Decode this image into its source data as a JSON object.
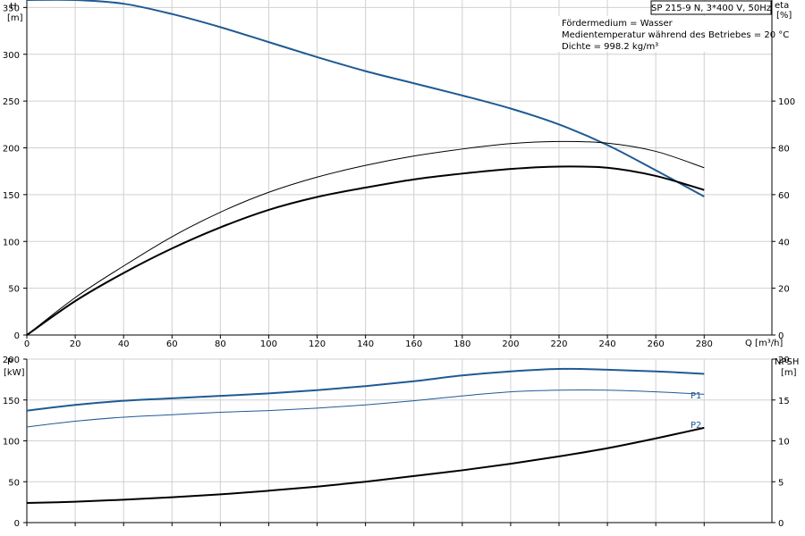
{
  "chart_data": [
    {
      "type": "line",
      "header": "SP 215-9 N, 3*400 V, 50Hz",
      "info": [
        "Fördermedium = Wasser",
        "Medientemperatur während des Betriebes = 20 °C",
        "Dichte = 998.2 kg/m³"
      ],
      "xlabel": "Q [m³/h]",
      "ylabel": [
        "H",
        "[m]"
      ],
      "y2label": [
        "eta",
        "[%]"
      ],
      "xlim": [
        0,
        308
      ],
      "ylim": [
        0,
        358
      ],
      "y2lim": [
        0,
        143.2
      ],
      "xticks": [
        0,
        20,
        40,
        60,
        80,
        100,
        120,
        140,
        160,
        180,
        200,
        220,
        240,
        260,
        280
      ],
      "yticks": [
        0,
        50,
        100,
        150,
        200,
        250,
        300,
        350
      ],
      "y2ticks": [
        0,
        20,
        40,
        60,
        80,
        100
      ],
      "grid": true,
      "series": [
        {
          "axis": "left",
          "color": "#1f5a94",
          "points": [
            [
              0,
              358
            ],
            [
              20,
              358
            ],
            [
              40,
              354
            ],
            [
              60,
              343
            ],
            [
              80,
              329
            ],
            [
              100,
              313
            ],
            [
              120,
              297
            ],
            [
              140,
              282
            ],
            [
              160,
              269
            ],
            [
              180,
              256
            ],
            [
              200,
              242
            ],
            [
              220,
              225
            ],
            [
              240,
              203
            ],
            [
              260,
              176
            ],
            [
              280,
              148
            ]
          ]
        },
        {
          "axis": "right",
          "color": "#000000",
          "points": [
            [
              0,
              0
            ],
            [
              20,
              14.5
            ],
            [
              40,
              26.5
            ],
            [
              60,
              37
            ],
            [
              80,
              46
            ],
            [
              100,
              53.5
            ],
            [
              120,
              59
            ],
            [
              140,
              63
            ],
            [
              160,
              66.5
            ],
            [
              180,
              69
            ],
            [
              200,
              71
            ],
            [
              220,
              72
            ],
            [
              240,
              71.5
            ],
            [
              260,
              68
            ],
            [
              280,
              62
            ]
          ]
        },
        {
          "axis": "right",
          "color": "#000000",
          "points": [
            [
              0,
              0
            ],
            [
              20,
              16
            ],
            [
              40,
              29.5
            ],
            [
              60,
              42
            ],
            [
              80,
              52.5
            ],
            [
              100,
              61
            ],
            [
              120,
              67.5
            ],
            [
              140,
              72.5
            ],
            [
              160,
              76.5
            ],
            [
              180,
              79.5
            ],
            [
              200,
              81.8
            ],
            [
              220,
              82.7
            ],
            [
              240,
              82
            ],
            [
              260,
              78.5
            ],
            [
              280,
              71.5
            ]
          ]
        }
      ]
    },
    {
      "type": "line",
      "xlim": [
        0,
        308
      ],
      "ylabel": [
        "P",
        "[kW]"
      ],
      "y2label": [
        "NPSH",
        "[m]"
      ],
      "ylim": [
        0,
        200
      ],
      "y2lim": [
        0,
        20
      ],
      "yticks": [
        0,
        50,
        100,
        150,
        200
      ],
      "y2ticks": [
        0,
        5,
        10,
        15,
        20
      ],
      "grid": true,
      "series": [
        {
          "name": "P1",
          "axis": "left",
          "color": "#1f5a94",
          "points": [
            [
              0,
              137
            ],
            [
              20,
              144
            ],
            [
              40,
              149
            ],
            [
              60,
              152
            ],
            [
              80,
              155
            ],
            [
              100,
              158
            ],
            [
              120,
              162
            ],
            [
              140,
              167
            ],
            [
              160,
              173
            ],
            [
              180,
              180
            ],
            [
              200,
              185
            ],
            [
              220,
              188
            ],
            [
              240,
              187
            ],
            [
              260,
              185
            ],
            [
              280,
              182
            ]
          ]
        },
        {
          "name": "P2",
          "axis": "left",
          "color": "#1f5a94",
          "points": [
            [
              0,
              117
            ],
            [
              20,
              124
            ],
            [
              40,
              129
            ],
            [
              60,
              132
            ],
            [
              80,
              135
            ],
            [
              100,
              137
            ],
            [
              120,
              140
            ],
            [
              140,
              144
            ],
            [
              160,
              149
            ],
            [
              180,
              155
            ],
            [
              200,
              160
            ],
            [
              220,
              162
            ],
            [
              240,
              162
            ],
            [
              260,
              160
            ],
            [
              280,
              157
            ]
          ]
        },
        {
          "axis": "right",
          "color": "#000000",
          "points": [
            [
              0,
              2.4
            ],
            [
              20,
              2.55
            ],
            [
              40,
              2.8
            ],
            [
              60,
              3.1
            ],
            [
              80,
              3.45
            ],
            [
              100,
              3.9
            ],
            [
              120,
              4.4
            ],
            [
              140,
              5
            ],
            [
              160,
              5.7
            ],
            [
              180,
              6.4
            ],
            [
              200,
              7.2
            ],
            [
              220,
              8.1
            ],
            [
              240,
              9.1
            ],
            [
              260,
              10.3
            ],
            [
              280,
              11.6
            ]
          ]
        }
      ]
    }
  ]
}
